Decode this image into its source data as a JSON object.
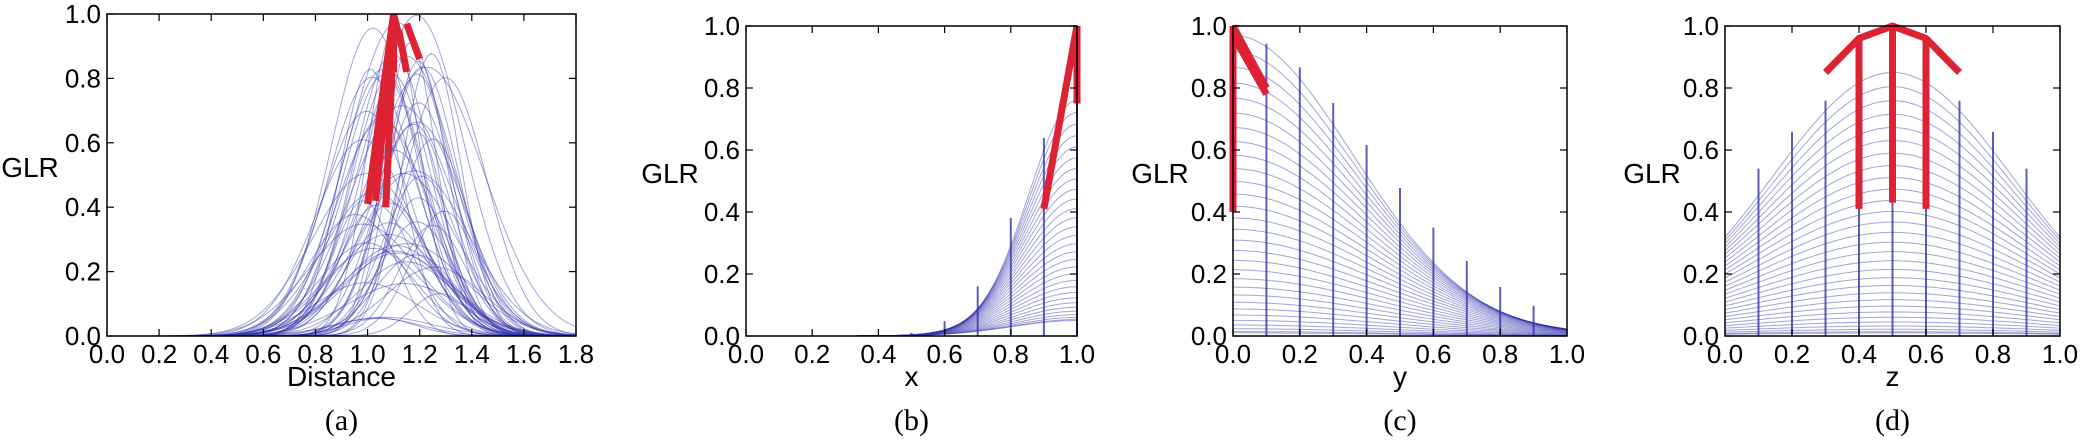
{
  "chart_data": [
    {
      "type": "line",
      "caption": "(a)",
      "xlabel": "Distance",
      "ylabel": "GLR",
      "xlim": [
        0.0,
        1.8
      ],
      "ylim": [
        0.0,
        1.0
      ],
      "xticks": [
        "0.0",
        "0.2",
        "0.4",
        "0.6",
        "0.8",
        "1.0",
        "1.2",
        "1.4",
        "1.6",
        "1.8"
      ],
      "yticks": [
        "0.0",
        "0.2",
        "0.4",
        "0.6",
        "0.8",
        "1.0"
      ],
      "grid": false,
      "colors": {
        "background_curves": "#3333aa",
        "highlight": "#dd2233"
      },
      "background_curves": {
        "count": 60,
        "shape": "gaussian",
        "peak_range": [
          0.05,
          1.0
        ],
        "center_range": [
          0.95,
          1.3
        ],
        "width_range": [
          0.1,
          0.22
        ]
      },
      "highlight_segments": [
        {
          "x": [
            1.0,
            1.1
          ],
          "y": [
            0.41,
            1.0
          ]
        },
        {
          "x": [
            1.03,
            1.1
          ],
          "y": [
            0.42,
            0.97
          ]
        },
        {
          "x": [
            1.07,
            1.1
          ],
          "y": [
            0.4,
            0.93
          ]
        },
        {
          "x": [
            1.1,
            1.13
          ],
          "y": [
            1.0,
            0.9
          ]
        },
        {
          "x": [
            1.12,
            1.15
          ],
          "y": [
            0.95,
            0.82
          ]
        },
        {
          "x": [
            1.15,
            1.2
          ],
          "y": [
            0.97,
            0.86
          ]
        },
        {
          "x": [
            1.1,
            1.1
          ],
          "y": [
            0.82,
            1.0
          ]
        }
      ]
    },
    {
      "type": "line",
      "caption": "(b)",
      "xlabel": "x",
      "ylabel": "GLR",
      "xlim": [
        0.0,
        1.0
      ],
      "ylim": [
        0.0,
        1.0
      ],
      "xticks": [
        "0.0",
        "0.2",
        "0.4",
        "0.6",
        "0.8",
        "1.0"
      ],
      "yticks": [
        "0.0",
        "0.2",
        "0.4",
        "0.6",
        "0.8",
        "1.0"
      ],
      "grid": false,
      "colors": {
        "background_curves": "#3333aa",
        "highlight": "#dd2233"
      },
      "background_curves": {
        "count": 30,
        "shape": "gaussian",
        "center": 1.0,
        "width": 0.17,
        "peak_range": [
          0.05,
          0.76
        ]
      },
      "vertical_lines_x": [
        0.5,
        0.6,
        0.7,
        0.8,
        0.9,
        1.0
      ],
      "highlight_segments": [
        {
          "x": [
            0.9,
            1.0
          ],
          "y": [
            0.41,
            1.0
          ]
        },
        {
          "x": [
            1.0,
            1.0
          ],
          "y": [
            0.75,
            1.0
          ]
        }
      ]
    },
    {
      "type": "line",
      "caption": "(c)",
      "xlabel": "y",
      "ylabel": "GLR",
      "xlim": [
        0.0,
        1.0
      ],
      "ylim": [
        0.0,
        1.0
      ],
      "xticks": [
        "0.0",
        "0.2",
        "0.4",
        "0.6",
        "0.8",
        "1.0"
      ],
      "yticks": [
        "0.0",
        "0.2",
        "0.4",
        "0.6",
        "0.8",
        "1.0"
      ],
      "grid": false,
      "colors": {
        "background_curves": "#3333aa",
        "highlight": "#dd2233"
      },
      "background_curves": {
        "count": 30,
        "shape": "gaussian",
        "center": 0.0,
        "width": 0.42,
        "peak_range": [
          0.01,
          0.97
        ]
      },
      "vertical_lines_x": [
        0.1,
        0.2,
        0.3,
        0.4,
        0.5,
        0.6,
        0.7,
        0.8,
        0.9
      ],
      "highlight_segments": [
        {
          "x": [
            0.0,
            0.1
          ],
          "y": [
            1.0,
            0.8
          ]
        },
        {
          "x": [
            0.0,
            0.1
          ],
          "y": [
            0.97,
            0.78
          ]
        },
        {
          "x": [
            0.0,
            0.0
          ],
          "y": [
            0.4,
            1.0
          ]
        }
      ]
    },
    {
      "type": "line",
      "caption": "(d)",
      "xlabel": "z",
      "ylabel": "GLR",
      "xlim": [
        0.0,
        1.0
      ],
      "ylim": [
        0.0,
        1.0
      ],
      "xticks": [
        "0.0",
        "0.2",
        "0.4",
        "0.6",
        "0.8",
        "1.0"
      ],
      "yticks": [
        "0.0",
        "0.2",
        "0.4",
        "0.6",
        "0.8",
        "1.0"
      ],
      "grid": false,
      "colors": {
        "background_curves": "#3333aa",
        "highlight": "#dd2233"
      },
      "background_curves": {
        "count": 30,
        "shape": "gaussian",
        "center": 0.5,
        "width": 0.42,
        "peak_range": [
          0.01,
          0.85
        ]
      },
      "vertical_lines_x": [
        0.1,
        0.2,
        0.3,
        0.4,
        0.5,
        0.6,
        0.7,
        0.8,
        0.9
      ],
      "highlight_segments": [
        {
          "x": [
            0.3,
            0.4,
            0.5,
            0.6,
            0.7
          ],
          "y": [
            0.85,
            0.96,
            1.0,
            0.96,
            0.85
          ]
        },
        {
          "x": [
            0.4,
            0.4
          ],
          "y": [
            0.41,
            0.96
          ]
        },
        {
          "x": [
            0.5,
            0.5
          ],
          "y": [
            0.43,
            1.0
          ]
        },
        {
          "x": [
            0.6,
            0.6
          ],
          "y": [
            0.41,
            0.96
          ]
        }
      ]
    }
  ]
}
